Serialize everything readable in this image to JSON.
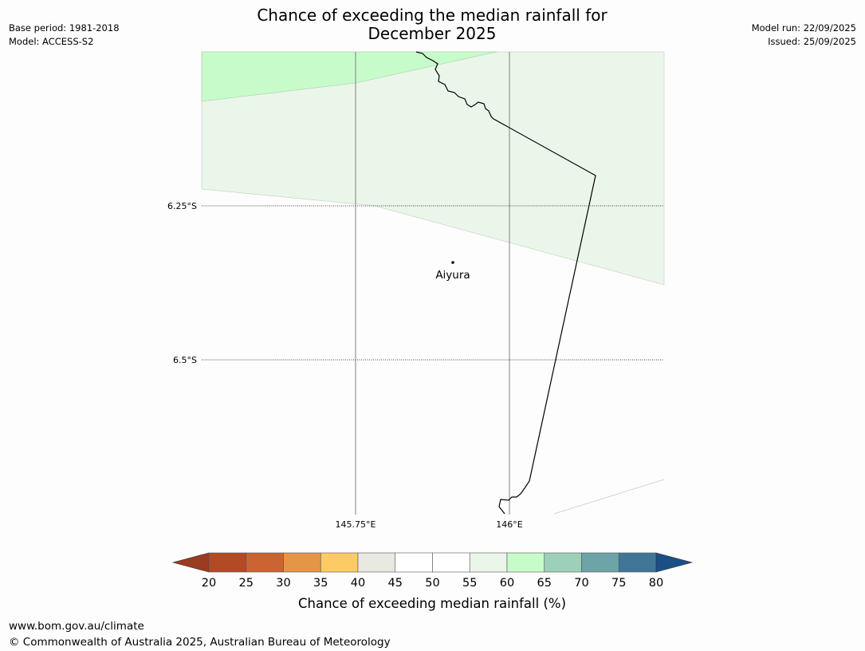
{
  "title_line1": "Chance of exceeding the median rainfall for",
  "title_line2": "December 2025",
  "meta": {
    "base_period": "Base period: 1981-2018",
    "model": "Model: ACCESS-S2",
    "model_run": "Model run: 22/09/2025",
    "issued": "Issued: 25/09/2025"
  },
  "map": {
    "lat_labels": [
      "6.25°S",
      "6.5°S"
    ],
    "lon_labels": [
      "145.75°E",
      "146°E"
    ],
    "place": "Aiyura"
  },
  "colorbar": {
    "ticks": [
      "20",
      "25",
      "30",
      "35",
      "40",
      "45",
      "50",
      "55",
      "60",
      "65",
      "70",
      "75",
      "80"
    ],
    "colors": [
      "#9b3b22",
      "#b34a26",
      "#cc6333",
      "#e39645",
      "#fdcb66",
      "#e9e9e2",
      "#ffffff",
      "#ffffff",
      "#eaf6e9",
      "#c8fbca",
      "#9dd0b8",
      "#6da4a8",
      "#3f7698",
      "#1a4f87"
    ],
    "label": "Chance of exceeding median rainfall (%)"
  },
  "footer": {
    "url": "www.bom.gov.au/climate",
    "copyright": "© Commonwealth of Australia 2025, Australian Bureau of Meteorology"
  }
}
